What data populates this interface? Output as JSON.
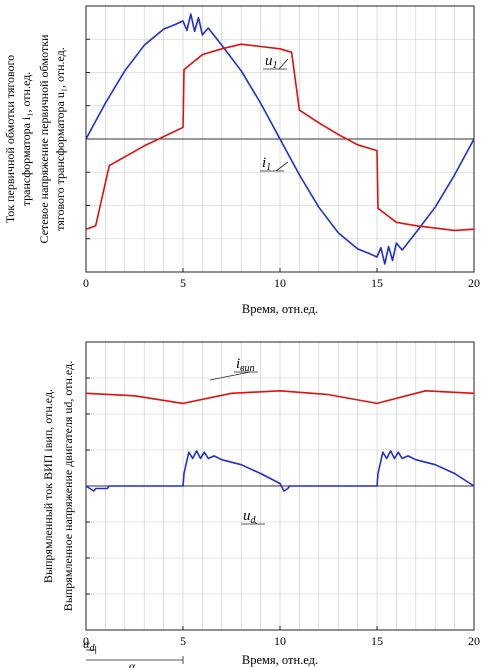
{
  "chart_data": [
    {
      "type": "line",
      "xlabel": "Время, отн.ед.",
      "ylabel_lines": [
        "Ток первичной обмотки тягового",
        "трансформатора i₁, отн.ед.",
        "Сетевое напряжение первичной обмотки",
        "тягового трансформатора u₁, отн.ед."
      ],
      "xlim": [
        0,
        20
      ],
      "ylim": [
        -1.15,
        1.15
      ],
      "x_ticks": [
        0,
        5,
        10,
        15,
        20
      ],
      "x_tick_labels": [
        "0",
        "5",
        "10",
        "15",
        "20"
      ],
      "grid": true,
      "series": [
        {
          "name": "u1",
          "label": "u",
          "label_sub": "1",
          "color": "#1f2fcf",
          "x": [
            0,
            1,
            2,
            3,
            4,
            4.6,
            5,
            5.2,
            5.4,
            5.6,
            5.8,
            6,
            6.3,
            7,
            8,
            9,
            10,
            11,
            12,
            13,
            14,
            14.6,
            15,
            15.2,
            15.4,
            15.6,
            15.8,
            16,
            16.3,
            17,
            18,
            19,
            20
          ],
          "y": [
            0,
            0.31,
            0.59,
            0.81,
            0.95,
            0.99,
            1.02,
            0.94,
            1.08,
            0.93,
            1.05,
            0.9,
            0.96,
            0.81,
            0.59,
            0.31,
            0,
            -0.31,
            -0.59,
            -0.81,
            -0.95,
            -0.99,
            -1.02,
            -0.94,
            -1.08,
            -0.93,
            -1.05,
            -0.9,
            -0.96,
            -0.81,
            -0.59,
            -0.31,
            0
          ]
        },
        {
          "name": "i1",
          "label": "i",
          "label_sub": "1",
          "color": "#e01010",
          "x": [
            0,
            0.5,
            1.2,
            3,
            5,
            5.05,
            6,
            7,
            8,
            9,
            10,
            10.6,
            11,
            12,
            13,
            14,
            15,
            15.05,
            16,
            17,
            18,
            19,
            20
          ],
          "y": [
            -0.78,
            -0.75,
            -0.23,
            -0.06,
            0.1,
            0.6,
            0.73,
            0.78,
            0.82,
            0.8,
            0.78,
            0.75,
            0.25,
            0.14,
            0.04,
            -0.05,
            -0.1,
            -0.6,
            -0.72,
            -0.75,
            -0.77,
            -0.79,
            -0.78
          ]
        }
      ]
    },
    {
      "type": "line",
      "xlabel": "Время, отн.ед.",
      "ylabel_lines": [
        "Выпрямленный ток ВИП iвип, отн.ед.",
        "Выпрямленное напряжение двигателя ud, отн.ед."
      ],
      "xlim": [
        0,
        20
      ],
      "ylim": [
        -1.15,
        1.15
      ],
      "x_ticks": [
        0,
        5,
        10,
        15,
        20
      ],
      "x_tick_labels": [
        "0",
        "5",
        "10",
        "15",
        "20"
      ],
      "grid": true,
      "series": [
        {
          "name": "iвип",
          "label": "i",
          "label_sub": "вип",
          "color": "#e01010",
          "x": [
            0,
            2.5,
            5,
            7.5,
            10,
            12.5,
            15,
            17.5,
            20
          ],
          "y": [
            0.74,
            0.72,
            0.66,
            0.74,
            0.76,
            0.73,
            0.66,
            0.76,
            0.74
          ]
        },
        {
          "name": "ud",
          "label": "u",
          "label_sub": "d",
          "color": "#1f2fcf",
          "x": [
            0,
            0.4,
            0.5,
            1.1,
            1.2,
            5,
            5.05,
            5.3,
            5.5,
            5.7,
            5.9,
            6.1,
            6.3,
            6.6,
            7,
            8,
            9,
            10,
            10.2,
            10.4,
            10.5,
            11,
            15,
            15.05,
            15.3,
            15.5,
            15.7,
            15.9,
            16.1,
            16.3,
            16.6,
            17,
            18,
            19,
            20
          ],
          "y": [
            0,
            -0.04,
            -0.02,
            -0.02,
            0,
            0,
            0.1,
            0.27,
            0.22,
            0.28,
            0.22,
            0.27,
            0.22,
            0.24,
            0.21,
            0.17,
            0.1,
            0.02,
            -0.04,
            -0.02,
            0,
            0,
            0,
            0.1,
            0.27,
            0.22,
            0.28,
            0.22,
            0.27,
            0.22,
            0.24,
            0.21,
            0.17,
            0.1,
            0
          ]
        }
      ],
      "annotations": [
        {
          "label": "α",
          "sub": "d",
          "x_from": 0,
          "x_to": 0.5
        },
        {
          "label": "α",
          "sub": "p",
          "x_from": 0,
          "x_to": 5
        }
      ]
    }
  ]
}
